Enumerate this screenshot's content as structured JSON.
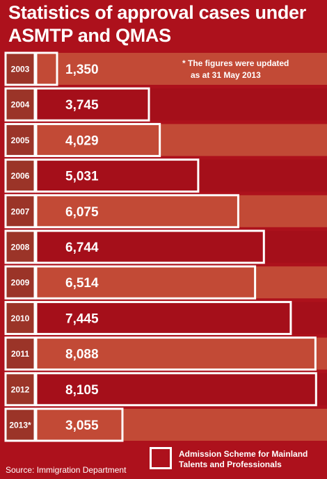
{
  "chart_data": {
    "type": "bar",
    "title": "Statistics of approval cases under ASMTP and QMAS",
    "categories": [
      "2003",
      "2004",
      "2005",
      "2006",
      "2007",
      "2008",
      "2009",
      "2010",
      "2011",
      "2012",
      "2013*"
    ],
    "series": [
      {
        "name": "Admission Scheme for Mainland Talents and Professionals",
        "values": [
          1350,
          3745,
          4029,
          5031,
          6075,
          6744,
          6514,
          7445,
          8088,
          8105,
          3055
        ],
        "labels": [
          "1,350",
          "3,745",
          "4,029",
          "5,031",
          "6,075",
          "6,744",
          "6,514",
          "7,445",
          "8,088",
          "8,105",
          "3,055"
        ]
      }
    ],
    "background_bar_scale": "full",
    "note_line1": "* The figures were updated",
    "note_line2": "as at 31 May 2013",
    "source": "Source: Immigration Department",
    "legend": {
      "label_line1": "Admission Scheme for Mainland",
      "label_line2": "Talents and Professionals",
      "position": "bottom-right"
    },
    "colors": {
      "background": "#ad111c",
      "band_light": "#c24a36",
      "band_dark": "#a50f1a",
      "year_cell": "#9b3428",
      "outline": "#ffffff"
    }
  }
}
